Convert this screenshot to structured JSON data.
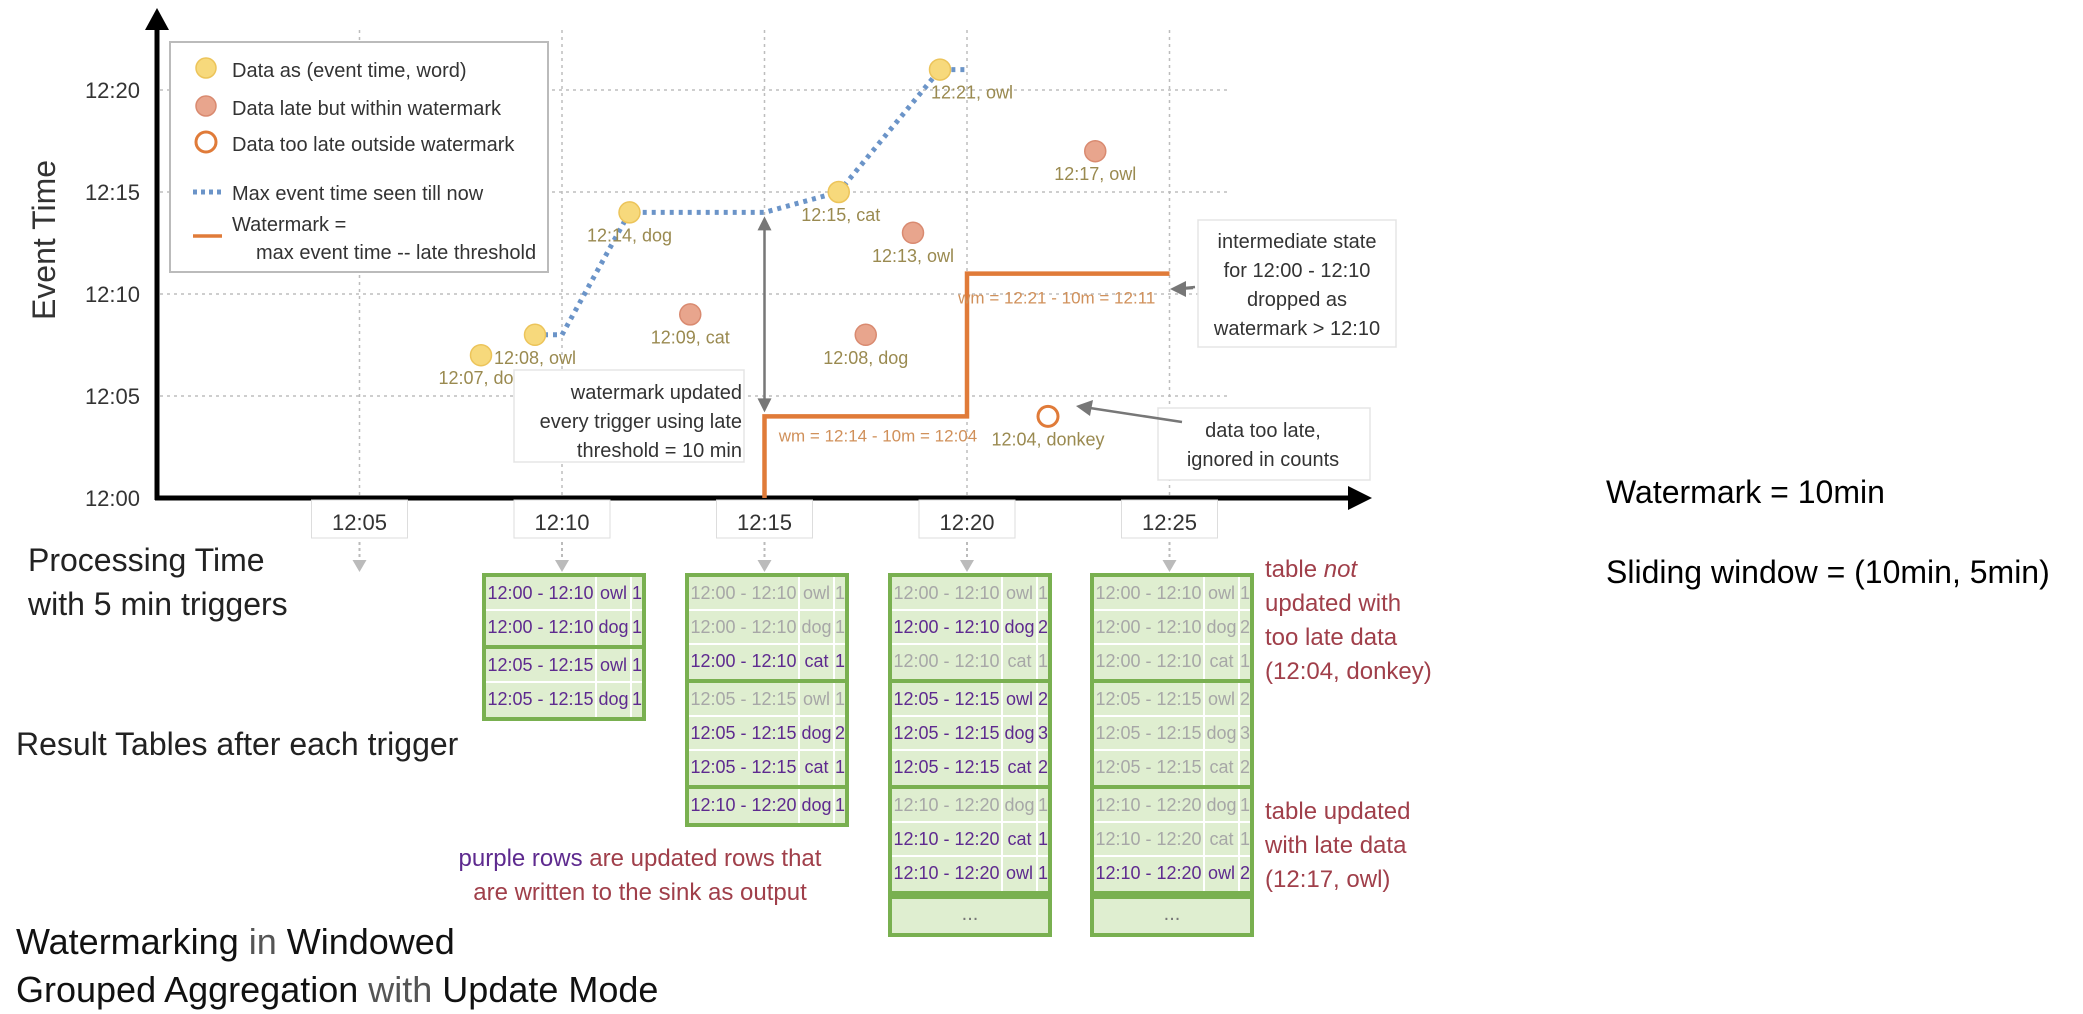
{
  "chart_data": {
    "type": "scatter",
    "ylabel": "Event Time",
    "xlabel": "Processing Time with 5 min triggers",
    "y_ticks": [
      "12:00",
      "12:05",
      "12:10",
      "12:15",
      "12:20"
    ],
    "x_ticks": [
      "12:05",
      "12:10",
      "12:15",
      "12:20",
      "12:25"
    ],
    "ylim": [
      "12:00",
      "12:22"
    ],
    "xlim": [
      "12:00",
      "12:29"
    ],
    "grid": true,
    "legend_position": "top-left",
    "legend": {
      "on_time": "Data as (event time, word)",
      "late_within": "Data late but within watermark",
      "too_late": "Data too late outside watermark",
      "max_line": "Max event time seen till now",
      "wm_line1": "Watermark =",
      "wm_line2": "max event time -- late threshold"
    },
    "colors": {
      "on_time": "#f7d97c",
      "late": "#e8a58d",
      "max_line": "#6b94c8",
      "watermark": "#e07b39",
      "table_border": "#79b050",
      "table_fill": "#dfeed0",
      "updated_row": "#5e2a8f",
      "note_text": "#a03f4a"
    },
    "points": [
      {
        "label": "12:07, dog",
        "x": "12:08",
        "y": "12:07",
        "kind": "on_time"
      },
      {
        "label": "12:08, owl",
        "x": "12:09:20",
        "y": "12:08",
        "kind": "on_time"
      },
      {
        "label": "12:14, dog",
        "x": "12:11:40",
        "y": "12:14",
        "kind": "on_time"
      },
      {
        "label": "12:09, cat",
        "x": "12:13:10",
        "y": "12:09",
        "kind": "late"
      },
      {
        "label": "12:15, cat",
        "x": "12:16:50",
        "y": "12:15",
        "kind": "on_time"
      },
      {
        "label": "12:08, dog",
        "x": "12:17:30",
        "y": "12:08",
        "kind": "late"
      },
      {
        "label": "12:13, owl",
        "x": "12:18:40",
        "y": "12:13",
        "kind": "late"
      },
      {
        "label": "12:21, owl",
        "x": "12:19:20",
        "y": "12:21",
        "kind": "on_time"
      },
      {
        "label": "12:04, donkey",
        "x": "12:22",
        "y": "12:04",
        "kind": "too_late"
      },
      {
        "label": "12:17, owl",
        "x": "12:23:10",
        "y": "12:17",
        "kind": "late"
      }
    ],
    "max_event_time": {
      "x": [
        "12:09:20",
        "12:10:00",
        "12:11:40",
        "12:15:00",
        "12:16:50",
        "12:19:20",
        "12:20:00"
      ],
      "y": [
        "12:08",
        "12:08",
        "12:14",
        "12:14",
        "12:15",
        "12:21",
        "12:21"
      ]
    },
    "watermark_line": {
      "x": [
        "12:15",
        "12:15",
        "12:20",
        "12:20",
        "12:25"
      ],
      "y": [
        "12:00",
        "12:04",
        "12:04",
        "12:11",
        "12:11"
      ]
    },
    "annotations": {
      "wm1": "wm = 12:14 - 10m = 12:04",
      "wm2": "wm = 12:21 - 10m = 12:11",
      "wm_update": [
        "watermark updated",
        "every trigger using late",
        "threshold = 10 min"
      ],
      "intermediate": [
        "intermediate state",
        "for 12:00 - 12:10",
        "dropped as",
        "watermark > 12:10"
      ],
      "too_late": [
        "data too late,",
        "ignored in counts"
      ]
    }
  },
  "processing_label": [
    "Processing Time",
    "with 5 min triggers"
  ],
  "result_label": "Result Tables after each trigger",
  "tables": [
    {
      "groups": [
        [
          {
            "window": "12:00 - 12:10",
            "word": "owl",
            "count": "1",
            "updated": true
          },
          {
            "window": "12:00 - 12:10",
            "word": "dog",
            "count": "1",
            "updated": true
          }
        ],
        [
          {
            "window": "12:05 - 12:15",
            "word": "owl",
            "count": "1",
            "updated": true
          },
          {
            "window": "12:05 - 12:15",
            "word": "dog",
            "count": "1",
            "updated": true
          }
        ]
      ],
      "more": false
    },
    {
      "groups": [
        [
          {
            "window": "12:00 - 12:10",
            "word": "owl",
            "count": "1",
            "updated": false
          },
          {
            "window": "12:00 - 12:10",
            "word": "dog",
            "count": "1",
            "updated": false
          },
          {
            "window": "12:00 - 12:10",
            "word": "cat",
            "count": "1",
            "updated": true
          }
        ],
        [
          {
            "window": "12:05 - 12:15",
            "word": "owl",
            "count": "1",
            "updated": false
          },
          {
            "window": "12:05 - 12:15",
            "word": "dog",
            "count": "2",
            "updated": true
          },
          {
            "window": "12:05 - 12:15",
            "word": "cat",
            "count": "1",
            "updated": true
          }
        ],
        [
          {
            "window": "12:10 - 12:20",
            "word": "dog",
            "count": "1",
            "updated": true
          }
        ]
      ],
      "more": false
    },
    {
      "groups": [
        [
          {
            "window": "12:00 - 12:10",
            "word": "owl",
            "count": "1",
            "updated": false
          },
          {
            "window": "12:00 - 12:10",
            "word": "dog",
            "count": "2",
            "updated": true
          },
          {
            "window": "12:00 - 12:10",
            "word": "cat",
            "count": "1",
            "updated": false
          }
        ],
        [
          {
            "window": "12:05 - 12:15",
            "word": "owl",
            "count": "2",
            "updated": true
          },
          {
            "window": "12:05 - 12:15",
            "word": "dog",
            "count": "3",
            "updated": true
          },
          {
            "window": "12:05 - 12:15",
            "word": "cat",
            "count": "2",
            "updated": true
          }
        ],
        [
          {
            "window": "12:10 - 12:20",
            "word": "dog",
            "count": "1",
            "updated": false
          },
          {
            "window": "12:10 - 12:20",
            "word": "cat",
            "count": "1",
            "updated": true
          },
          {
            "window": "12:10 - 12:20",
            "word": "owl",
            "count": "1",
            "updated": true
          }
        ]
      ],
      "more": true
    },
    {
      "groups": [
        [
          {
            "window": "12:00 - 12:10",
            "word": "owl",
            "count": "1",
            "updated": false
          },
          {
            "window": "12:00 - 12:10",
            "word": "dog",
            "count": "2",
            "updated": false
          },
          {
            "window": "12:00 - 12:10",
            "word": "cat",
            "count": "1",
            "updated": false
          }
        ],
        [
          {
            "window": "12:05 - 12:15",
            "word": "owl",
            "count": "2",
            "updated": false
          },
          {
            "window": "12:05 - 12:15",
            "word": "dog",
            "count": "3",
            "updated": false
          },
          {
            "window": "12:05 - 12:15",
            "word": "cat",
            "count": "2",
            "updated": false
          }
        ],
        [
          {
            "window": "12:10 - 12:20",
            "word": "dog",
            "count": "1",
            "updated": false
          },
          {
            "window": "12:10 - 12:20",
            "word": "cat",
            "count": "1",
            "updated": false
          },
          {
            "window": "12:10 - 12:20",
            "word": "owl",
            "count": "2",
            "updated": true
          }
        ]
      ],
      "more": true
    }
  ],
  "more_text": "...",
  "notes": {
    "not_updated_1": "table ",
    "not_updated_em": "not",
    "not_updated_2": "updated with",
    "not_updated_3": "too late data",
    "not_updated_4": "(12:04, donkey)",
    "updated_1": "table updated",
    "updated_2": "with late data",
    "updated_3": "(12:17, owl)",
    "purple_1": "purple rows",
    "purple_2": " are updated rows that",
    "purple_3": "are written to the sink as output"
  },
  "title": {
    "w1": "Watermarking",
    "w2": " in ",
    "w3": "Windowed",
    "w4": "Grouped Aggregation",
    "w5": " with ",
    "w6": "Update Mode"
  },
  "side": {
    "watermark": "Watermark = 10min",
    "window": "Sliding window = (10min, 5min)"
  }
}
